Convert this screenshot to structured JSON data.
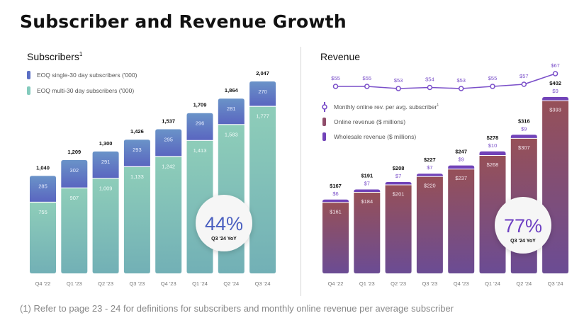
{
  "page": {
    "title": "Subscriber and Revenue Growth",
    "footnote": "(1) Refer to page 23 - 24 for definitions for subscribers and monthly online revenue per average subscriber"
  },
  "colors": {
    "single": "#5b6fc4",
    "multi": "#84cbbd",
    "online": "#8f4d6a",
    "wholesale": "#7143b8",
    "line": "#7a4fc9",
    "badge_subs": "#4a5fc0",
    "badge_rev": "#6d3fc2"
  },
  "chart_data": [
    {
      "type": "bar",
      "stacked": true,
      "title": "Subscribers",
      "title_superscript": "1",
      "categories": [
        "Q4 '22",
        "Q1 '23",
        "Q2 '23",
        "Q3 '23",
        "Q4 '23",
        "Q1 '24",
        "Q2 '24",
        "Q3 '24"
      ],
      "series": [
        {
          "name": "EOQ multi-30 day subscribers  ('000)",
          "values": [
            755,
            907,
            1009,
            1133,
            1242,
            1413,
            1583,
            1777
          ]
        },
        {
          "name": "EOQ single-30 day subscribers ('000)",
          "values": [
            285,
            302,
            291,
            293,
            295,
            296,
            281,
            270
          ]
        }
      ],
      "totals": [
        "1,040",
        "1,209",
        "1,300",
        "1,426",
        "1,537",
        "1,709",
        "1,864",
        "2,047"
      ],
      "multi_labels": [
        "755",
        "907",
        "1,009",
        "1,133",
        "1,242",
        "1,413",
        "1,583",
        "1,777"
      ],
      "single_labels": [
        "285",
        "302",
        "291",
        "293",
        "295",
        "296",
        "281",
        "270"
      ],
      "legend": [
        "EOQ single-30 day subscribers ('000)",
        "EOQ multi-30 day subscribers  ('000)"
      ],
      "legend_position": "top-left",
      "ylim": [
        0,
        2047
      ],
      "badge": {
        "value": "44%",
        "caption": "Q3 '24 YoY"
      }
    },
    {
      "type": "bar",
      "stacked": true,
      "title": "Revenue",
      "categories": [
        "Q4 '22",
        "Q1 '23",
        "Q2 '23",
        "Q3 '23",
        "Q4 '23",
        "Q1 '24",
        "Q2 '24",
        "Q3 '24"
      ],
      "series": [
        {
          "name": "Online revenue ($ millions)",
          "values": [
            161,
            184,
            201,
            220,
            237,
            268,
            307,
            393
          ]
        },
        {
          "name": "Wholesale revenue ($ millions)",
          "values": [
            6,
            7,
            7,
            7,
            9,
            10,
            9,
            9
          ]
        }
      ],
      "totals": [
        "$167",
        "$191",
        "$208",
        "$227",
        "$247",
        "$278",
        "$316",
        "$402"
      ],
      "online_labels": [
        "$161",
        "$184",
        "$201",
        "$220",
        "$237",
        "$268",
        "$307",
        "$393"
      ],
      "wholesale_labels": [
        "$6",
        "$7",
        "$7",
        "$7",
        "$9",
        "$10",
        "$9",
        "$9"
      ],
      "line": {
        "name": "Monthly online rev. per avg. subscriber",
        "superscript": "1",
        "values": [
          55,
          55,
          53,
          54,
          53,
          55,
          57,
          67
        ],
        "labels": [
          "$55",
          "$55",
          "$53",
          "$54",
          "$53",
          "$55",
          "$57",
          "$67"
        ]
      },
      "legend": [
        "Monthly online rev. per avg. subscriber",
        "Online revenue ($ millions)",
        "Wholesale revenue ($ millions)"
      ],
      "legend_position": "middle-left",
      "ylim": [
        0,
        402
      ],
      "badge": {
        "value": "77%",
        "caption": "Q3 '24 YoY"
      }
    }
  ]
}
